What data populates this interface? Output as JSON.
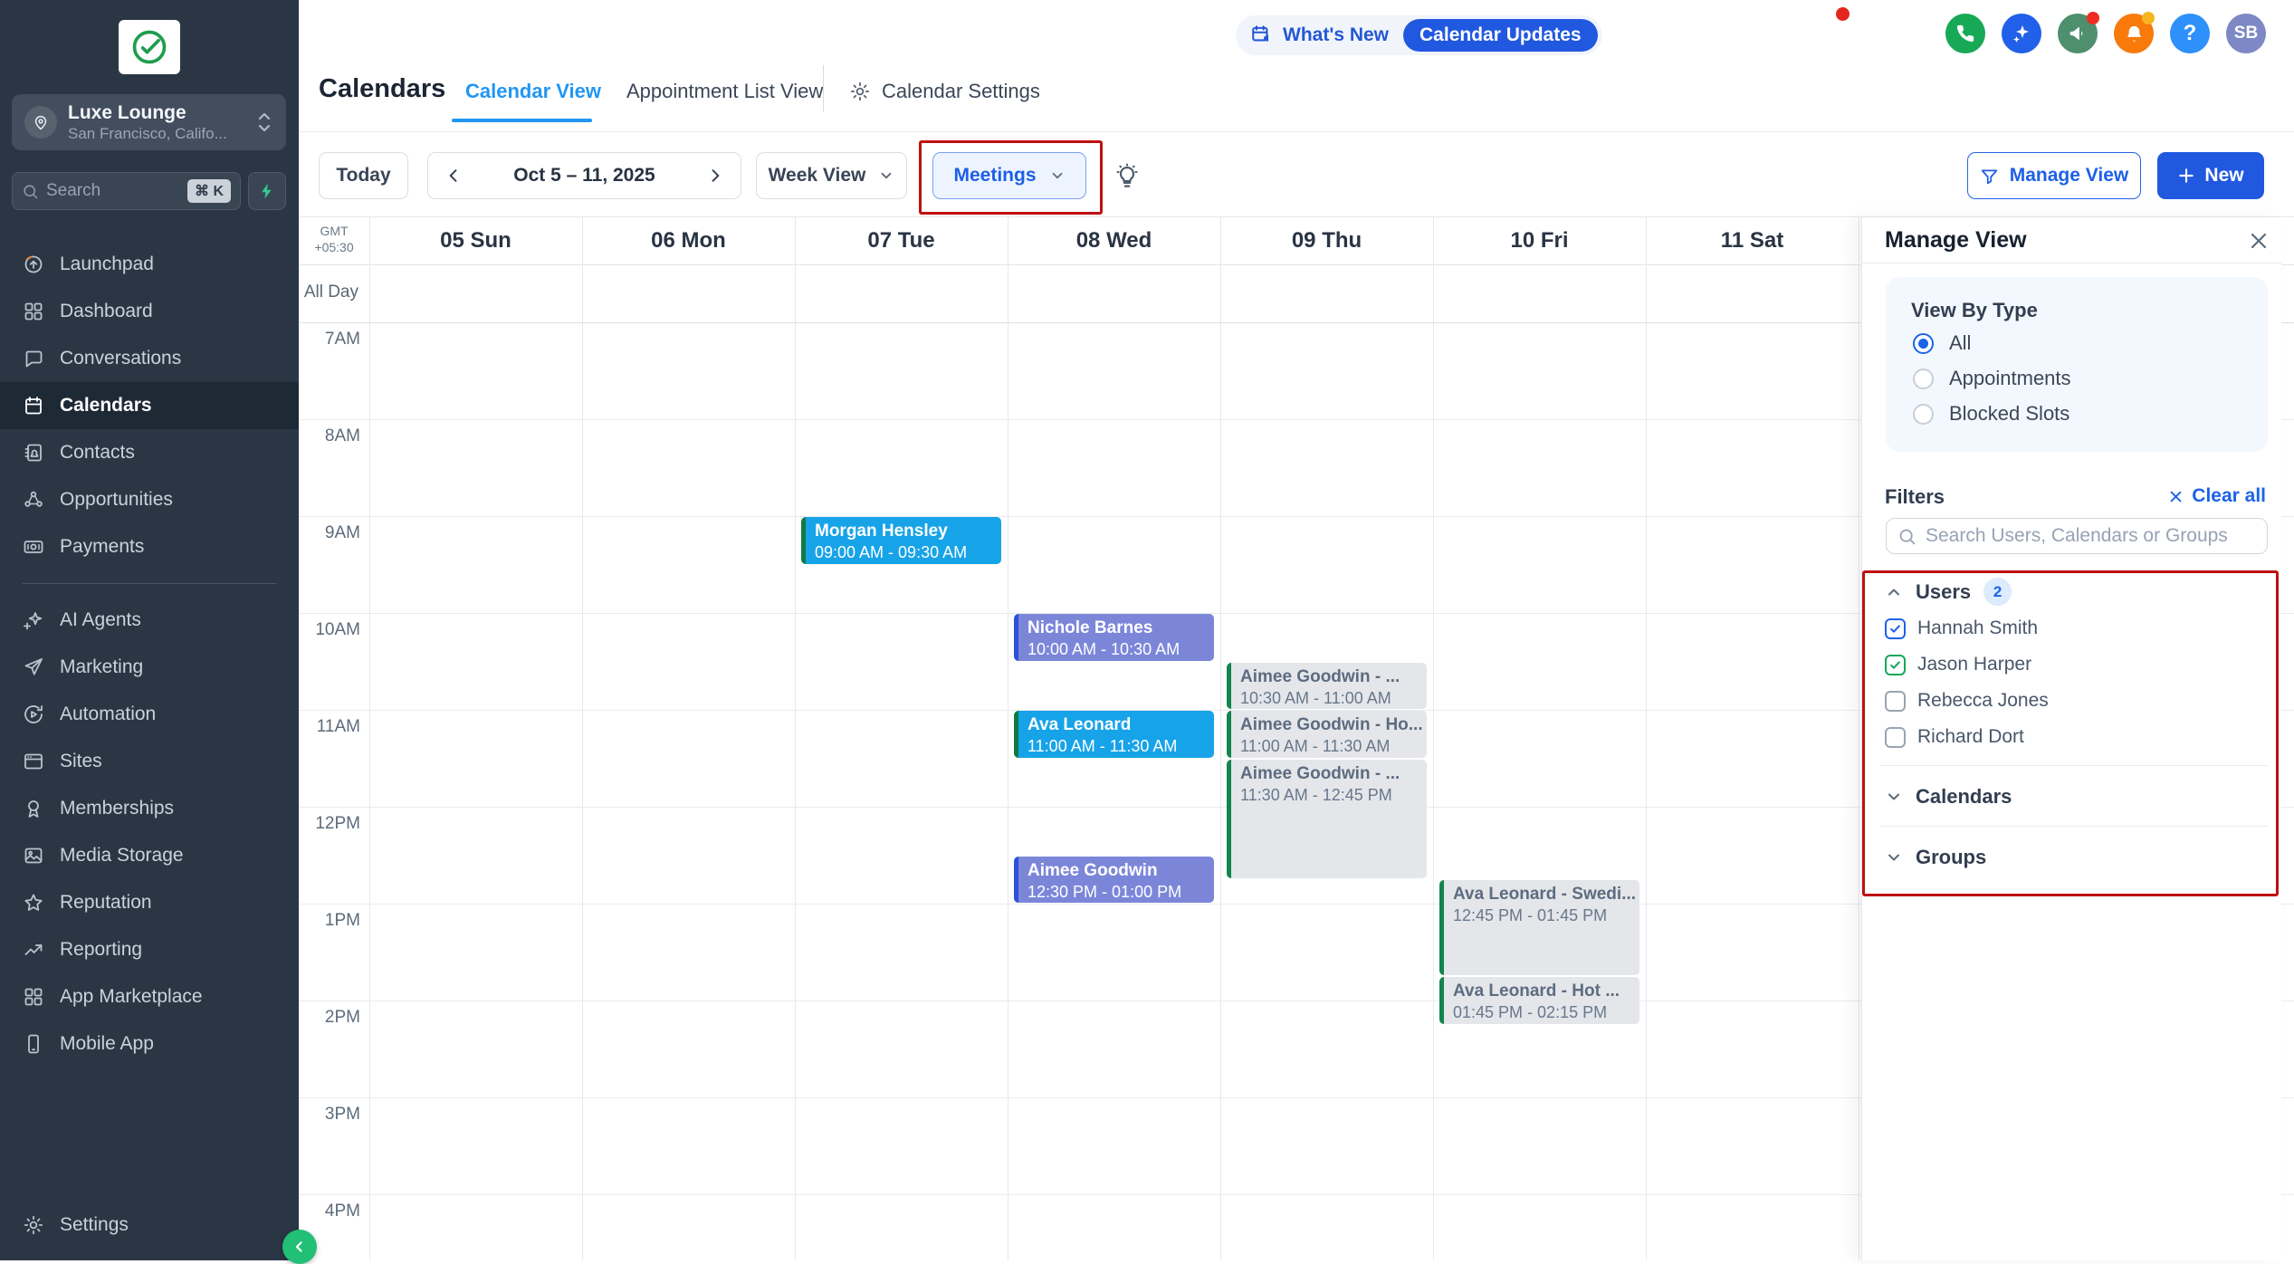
{
  "colors": {
    "accent_blue": "#1c63e8",
    "tab_blue": "#2196f3",
    "annotation_red": "#c01010",
    "event_blue": "#17a3e8",
    "event_purple": "#7c86d9",
    "event_gray": "#e4e6ea"
  },
  "sidebar": {
    "account": {
      "name": "Luxe Lounge",
      "location": "San Francisco, Califo..."
    },
    "search": {
      "placeholder": "Search",
      "shortcut": "⌘ K"
    },
    "items": [
      {
        "label": "Launchpad",
        "icon": "launchpad",
        "active": false
      },
      {
        "label": "Dashboard",
        "icon": "dashboard",
        "active": false
      },
      {
        "label": "Conversations",
        "icon": "conversations",
        "active": false
      },
      {
        "label": "Calendars",
        "icon": "calendars",
        "active": true
      },
      {
        "label": "Contacts",
        "icon": "contacts",
        "active": false
      },
      {
        "label": "Opportunities",
        "icon": "opportunities",
        "active": false
      },
      {
        "label": "Payments",
        "icon": "payments",
        "active": false
      },
      {
        "divider": true
      },
      {
        "label": "AI Agents",
        "icon": "ai-agents",
        "active": false
      },
      {
        "label": "Marketing",
        "icon": "marketing",
        "active": false
      },
      {
        "label": "Automation",
        "icon": "automation",
        "active": false
      },
      {
        "label": "Sites",
        "icon": "sites",
        "active": false
      },
      {
        "label": "Memberships",
        "icon": "memberships",
        "active": false
      },
      {
        "label": "Media Storage",
        "icon": "media-storage",
        "active": false
      },
      {
        "label": "Reputation",
        "icon": "reputation",
        "active": false
      },
      {
        "label": "Reporting",
        "icon": "reporting",
        "active": false
      },
      {
        "label": "App Marketplace",
        "icon": "app-marketplace",
        "active": false
      },
      {
        "label": "Mobile App",
        "icon": "mobile-app",
        "active": false
      }
    ],
    "settings_label": "Settings"
  },
  "header": {
    "title": "Calendars",
    "tabs": [
      {
        "label": "Calendar View",
        "active": true
      },
      {
        "label": "Appointment List View",
        "active": false
      }
    ],
    "settings_tab": "Calendar Settings",
    "whats_new_label": "What's New",
    "calendar_updates_label": "Calendar Updates",
    "avatar_initials": "SB"
  },
  "toolbar": {
    "today_label": "Today",
    "date_range": "Oct 5 – 11, 2025",
    "week_view_label": "Week View",
    "meetings_label": "Meetings",
    "manage_view_label": "Manage View",
    "new_label": "New"
  },
  "calendar": {
    "timezone_line1": "GMT",
    "timezone_line2": "+05:30",
    "all_day_label": "All Day",
    "days": [
      "05 Sun",
      "06 Mon",
      "07 Tue",
      "08 Wed",
      "09 Thu",
      "10 Fri",
      "11 Sat"
    ],
    "hours": [
      "7AM",
      "8AM",
      "9AM",
      "10AM",
      "11AM",
      "12PM",
      "1PM",
      "2PM",
      "3PM",
      "4PM"
    ],
    "events": [
      {
        "day": 2,
        "title": "Morgan Hensley",
        "time": "09:00 AM - 09:30 AM",
        "start": 9.0,
        "end": 9.5,
        "variant": "blue"
      },
      {
        "day": 3,
        "title": "Nichole Barnes",
        "time": "10:00 AM - 10:30 AM",
        "start": 10.0,
        "end": 10.5,
        "variant": "purple"
      },
      {
        "day": 3,
        "title": "Ava Leonard",
        "time": "11:00 AM - 11:30 AM",
        "start": 11.0,
        "end": 11.5,
        "variant": "blue"
      },
      {
        "day": 3,
        "title": "Aimee Goodwin",
        "time": "12:30 PM - 01:00 PM",
        "start": 12.5,
        "end": 13.0,
        "variant": "purple"
      },
      {
        "day": 4,
        "title": "Aimee Goodwin - ...",
        "time": "10:30 AM - 11:00 AM",
        "start": 10.5,
        "end": 11.0,
        "variant": "gray"
      },
      {
        "day": 4,
        "title": "Aimee Goodwin - Ho...",
        "time": "11:00 AM - 11:30 AM",
        "start": 11.0,
        "end": 11.5,
        "variant": "gray"
      },
      {
        "day": 4,
        "title": "Aimee Goodwin - ...",
        "time": "11:30 AM - 12:45 PM",
        "start": 11.5,
        "end": 12.75,
        "variant": "gray"
      },
      {
        "day": 5,
        "title": "Ava Leonard - Swedi...",
        "time": "12:45 PM - 01:45 PM",
        "start": 12.75,
        "end": 13.75,
        "variant": "gray"
      },
      {
        "day": 5,
        "title": "Ava Leonard - Hot ...",
        "time": "01:45 PM - 02:15 PM",
        "start": 13.75,
        "end": 14.25,
        "variant": "gray"
      }
    ]
  },
  "panel": {
    "title": "Manage View",
    "view_by_type": {
      "label": "View By Type",
      "options": [
        {
          "label": "All",
          "selected": true
        },
        {
          "label": "Appointments",
          "selected": false
        },
        {
          "label": "Blocked Slots",
          "selected": false
        }
      ]
    },
    "filters_label": "Filters",
    "clear_all_label": "Clear all",
    "search_placeholder": "Search Users, Calendars or Groups",
    "users": {
      "label": "Users",
      "count": "2",
      "items": [
        {
          "name": "Hannah Smith",
          "checked": true,
          "check_color": "blue"
        },
        {
          "name": "Jason Harper",
          "checked": true,
          "check_color": "green"
        },
        {
          "name": "Rebecca Jones",
          "checked": false,
          "check_color": ""
        },
        {
          "name": "Richard Dort",
          "checked": false,
          "check_color": ""
        }
      ]
    },
    "sections": [
      {
        "label": "Calendars"
      },
      {
        "label": "Groups"
      }
    ]
  }
}
